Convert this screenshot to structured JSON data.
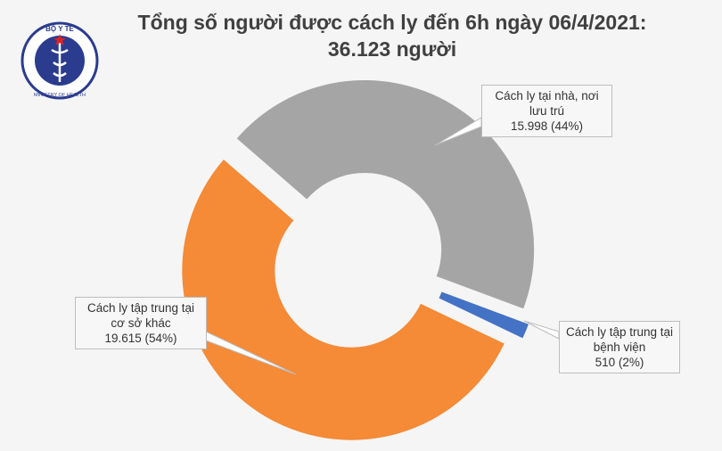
{
  "logo": {
    "top": "BỘ Y TẾ",
    "bottom": "MINISTRY OF HEALTH"
  },
  "chart_data": {
    "type": "donut",
    "title": "Tổng số người được cách ly đến 6h ngày 06/4/2021:",
    "subtitle": "36.123 người",
    "categories": [
      "Cách ly tại nhà, nơi lưu trú",
      "Cách ly tập trung tại bệnh viện",
      "Cách ly tập trung tại cơ sở khác"
    ],
    "values": [
      15998,
      510,
      19615
    ],
    "value_labels": [
      "15.998 (44%)",
      "510 (2%)",
      "19.615 (54%)"
    ],
    "colors": [
      "#a5a5a5",
      "#4472c4",
      "#f58a37"
    ]
  }
}
